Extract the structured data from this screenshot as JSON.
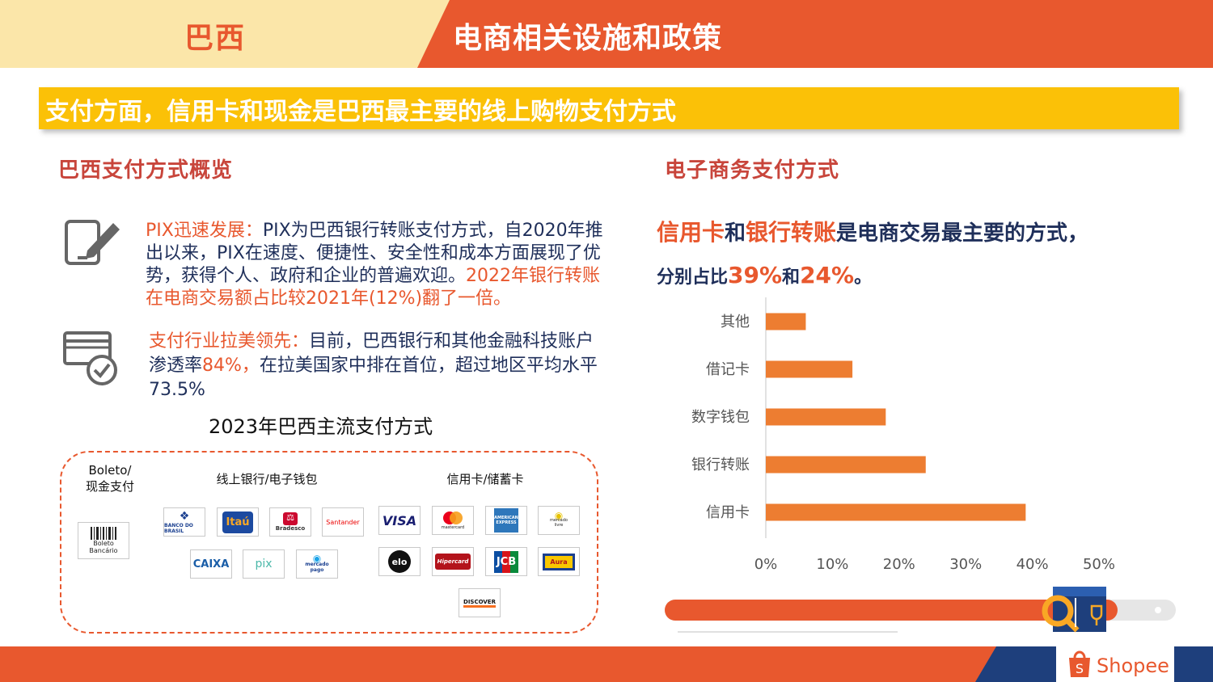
{
  "header": {
    "country": "巴西",
    "title": "电商相关设施和政策"
  },
  "banner": {
    "text": "支付方面，信用卡和现金是巴西最主要的线上购物支付方式"
  },
  "left": {
    "section_title": "巴西支付方式概览",
    "pix": {
      "lead": "PIX迅速发展：",
      "body": "PIX为巴西银行转账支付方式，自2020年推出以来，PIX在速度、便捷性、安全性和成本方面展现了优势，获得个人、政府和企业的普遍欢迎。",
      "highlight": "2022年银行转账在电商交易额占比较2021年(12%)翻了一倍。"
    },
    "industry": {
      "lead": "支付行业拉美领先：",
      "body1": "目前，巴西银行和其他金融科技账户渗透率",
      "pct": "84%，",
      "body2": "在拉美国家中排在首位，超过地区平均水平73.5%"
    },
    "methods_title": "2023年巴西主流支付方式",
    "groups": {
      "boleto": "Boleto/\n现金支付",
      "online": "线上银行/电子钱包",
      "card": "信用卡/储蓄卡"
    },
    "logos": {
      "boleto": "Boleto Bancário",
      "online": [
        "BANCO DO BRASIL",
        "Itaú",
        "Bradesco",
        "Santander",
        "CAIXA",
        "pix",
        "mercado pago"
      ],
      "card": [
        "VISA",
        "mastercard",
        "AMERICAN EXPRESS",
        "mercado livre",
        "elo",
        "Hipercard",
        "JCB",
        "Aura",
        "DISCOVER"
      ]
    }
  },
  "right": {
    "section_title": "电子商务支付方式",
    "summary": {
      "t1": "信用卡",
      "t2": "和",
      "t3": "银行转账",
      "t4": "是电商交易最主要的方式，",
      "t5": "分别占比",
      "t6": "39%",
      "t7": "和",
      "t8": "24%",
      "t9": "。"
    }
  },
  "chart_data": {
    "type": "bar",
    "orientation": "horizontal",
    "categories": [
      "其他",
      "借记卡",
      "数字钱包",
      "银行转账",
      "信用卡"
    ],
    "values": [
      6,
      13,
      18,
      24,
      39
    ],
    "xlim": [
      0,
      50
    ],
    "ticks": [
      "0%",
      "10%",
      "20%",
      "30%",
      "40%",
      "50%"
    ],
    "bar_color": "#ed7d31",
    "grid": false
  },
  "footer": {
    "brand": "Shopee"
  },
  "colors": {
    "accent": "#e8582e",
    "banner": "#fbc107",
    "navy": "#1e3f7c"
  }
}
